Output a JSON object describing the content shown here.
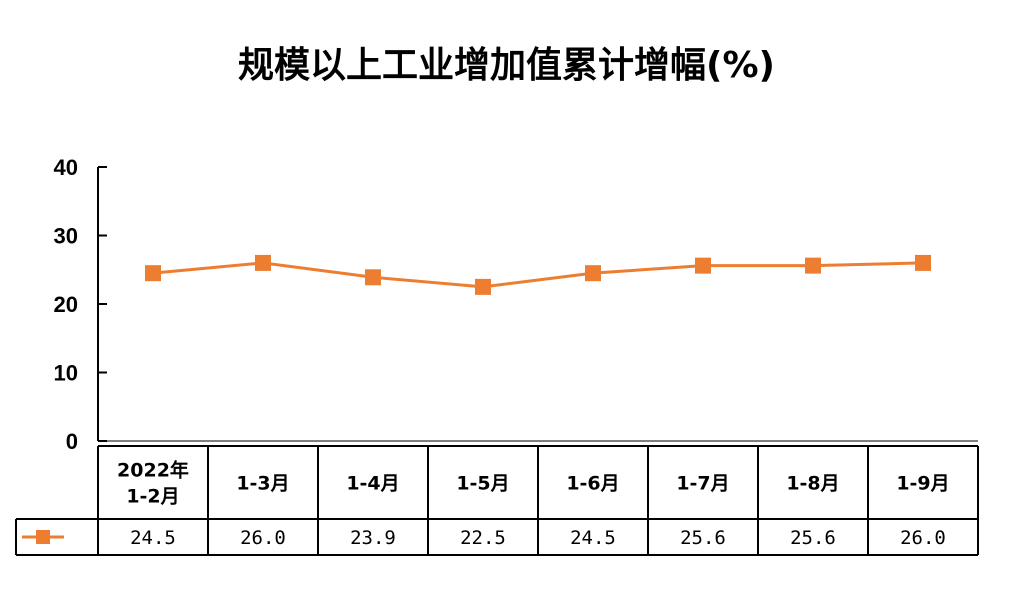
{
  "chart_data": {
    "type": "line",
    "title": "规模以上工业增加值累计增幅(%)",
    "categories": [
      "2022年\n1-2月",
      "1-3月",
      "1-4月",
      "1-5月",
      "1-6月",
      "1-7月",
      "1-8月",
      "1-9月"
    ],
    "series": [
      {
        "values": [
          24.5,
          26.0,
          23.9,
          22.5,
          24.5,
          25.6,
          25.6,
          26.0
        ],
        "labels": [
          "24.5",
          "26.0",
          "23.9",
          "22.5",
          "24.5",
          "25.6",
          "25.6",
          "26.0"
        ],
        "color": "#ED7D31",
        "marker": "square"
      }
    ],
    "ylim": [
      0,
      40
    ],
    "yticks": [
      "0",
      "10",
      "20",
      "30",
      "40"
    ],
    "grid": false,
    "legend": "data-table"
  }
}
